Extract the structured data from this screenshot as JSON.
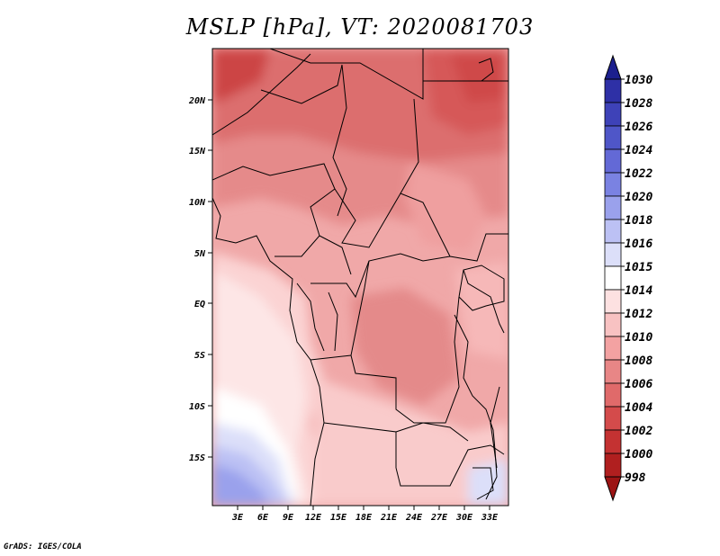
{
  "title": "MSLP [hPa], VT: 2020081703",
  "credit": "GrADS: IGES/COLA",
  "map": {
    "lat_labels": [
      "20N",
      "15N",
      "10N",
      "5N",
      "EQ",
      "5S",
      "10S",
      "15S"
    ],
    "lon_labels": [
      "3E",
      "6E",
      "9E",
      "12E",
      "15E",
      "18E",
      "21E",
      "24E",
      "27E",
      "30E",
      "33E"
    ]
  },
  "colorbar": {
    "levels": [
      "1030",
      "1028",
      "1026",
      "1024",
      "1022",
      "1020",
      "1018",
      "1016",
      "1015",
      "1014",
      "1012",
      "1010",
      "1008",
      "1006",
      "1004",
      "1002",
      "1000",
      "998"
    ],
    "colors": [
      "#1c1f8e",
      "#2e30a6",
      "#3e42b8",
      "#4f56c8",
      "#6369d6",
      "#7a82e2",
      "#9aa1ec",
      "#bcc1f4",
      "#dcdff9",
      "#ffffff",
      "#fde1e1",
      "#f8c2c2",
      "#f3a2a2",
      "#e88686",
      "#e06a6a",
      "#d44b4b",
      "#c43232",
      "#b01f1f",
      "#9c1414"
    ]
  },
  "colors": {
    "high_pressure": "#8a85ea",
    "low_pressure": "#c84040",
    "border": "#000000"
  }
}
